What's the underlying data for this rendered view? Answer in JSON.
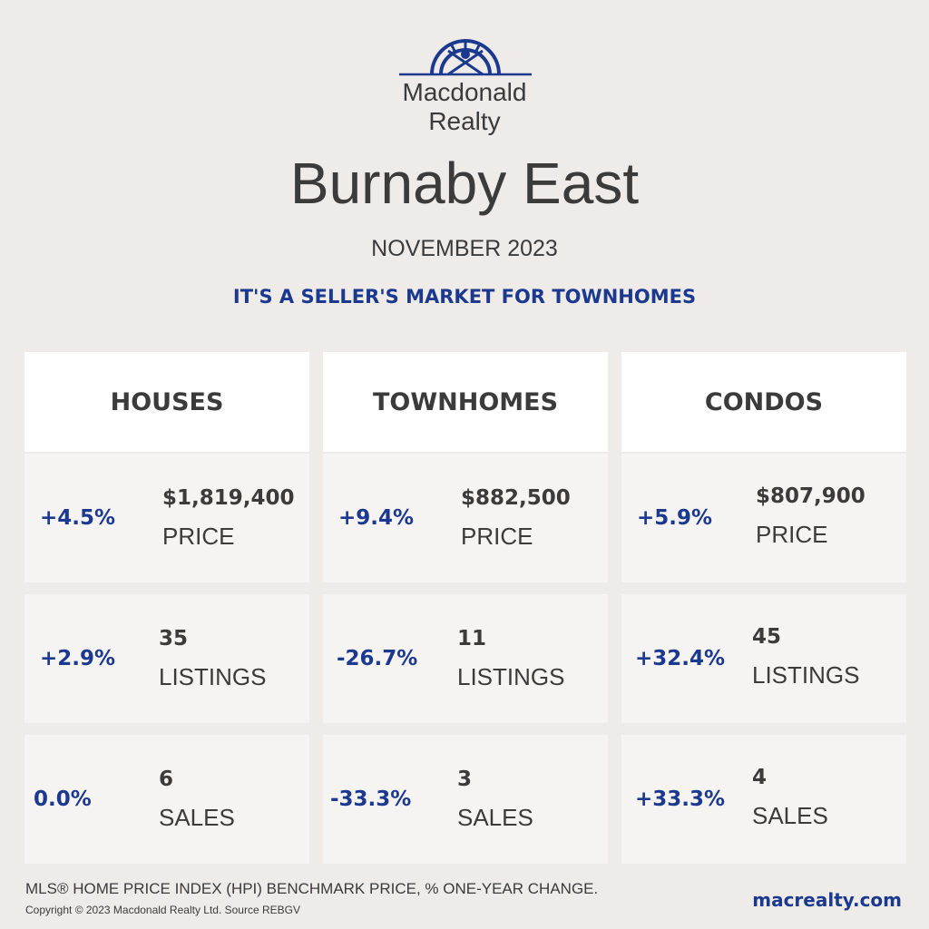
{
  "brand": {
    "line1": "Macdonald",
    "line2": "Realty",
    "accent": "#1b3a8f"
  },
  "title": "Burnaby East",
  "period": "NOVEMBER 2023",
  "headline": "IT'S A SELLER'S MARKET FOR TOWNHOMES",
  "columns": [
    {
      "name": "HOUSES",
      "rows": [
        {
          "change": "+4.5%",
          "value": "$1,819,400",
          "label": "PRICE"
        },
        {
          "change": "+2.9%",
          "value": "35",
          "label": "LISTINGS"
        },
        {
          "change": "0.0%",
          "value": "6",
          "label": "SALES"
        }
      ]
    },
    {
      "name": "TOWNHOMES",
      "rows": [
        {
          "change": "+9.4%",
          "value": "$882,500",
          "label": "PRICE"
        },
        {
          "change": "-26.7%",
          "value": "11",
          "label": "LISTINGS"
        },
        {
          "change": "-33.3%",
          "value": "3",
          "label": "SALES"
        }
      ]
    },
    {
      "name": "CONDOS",
      "rows": [
        {
          "change": "+5.9%",
          "value": "$807,900",
          "label": "PRICE"
        },
        {
          "change": "+32.4%",
          "value": "45",
          "label": "LISTINGS"
        },
        {
          "change": "+33.3%",
          "value": "4",
          "label": "SALES"
        }
      ]
    }
  ],
  "footer": {
    "note": "MLS® HOME PRICE INDEX (HPI) BENCHMARK PRICE, % ONE-YEAR CHANGE.",
    "copyright": "Copyright © 2023 Macdonald Realty Ltd. Source REBGV",
    "website": "macrealty.com"
  }
}
